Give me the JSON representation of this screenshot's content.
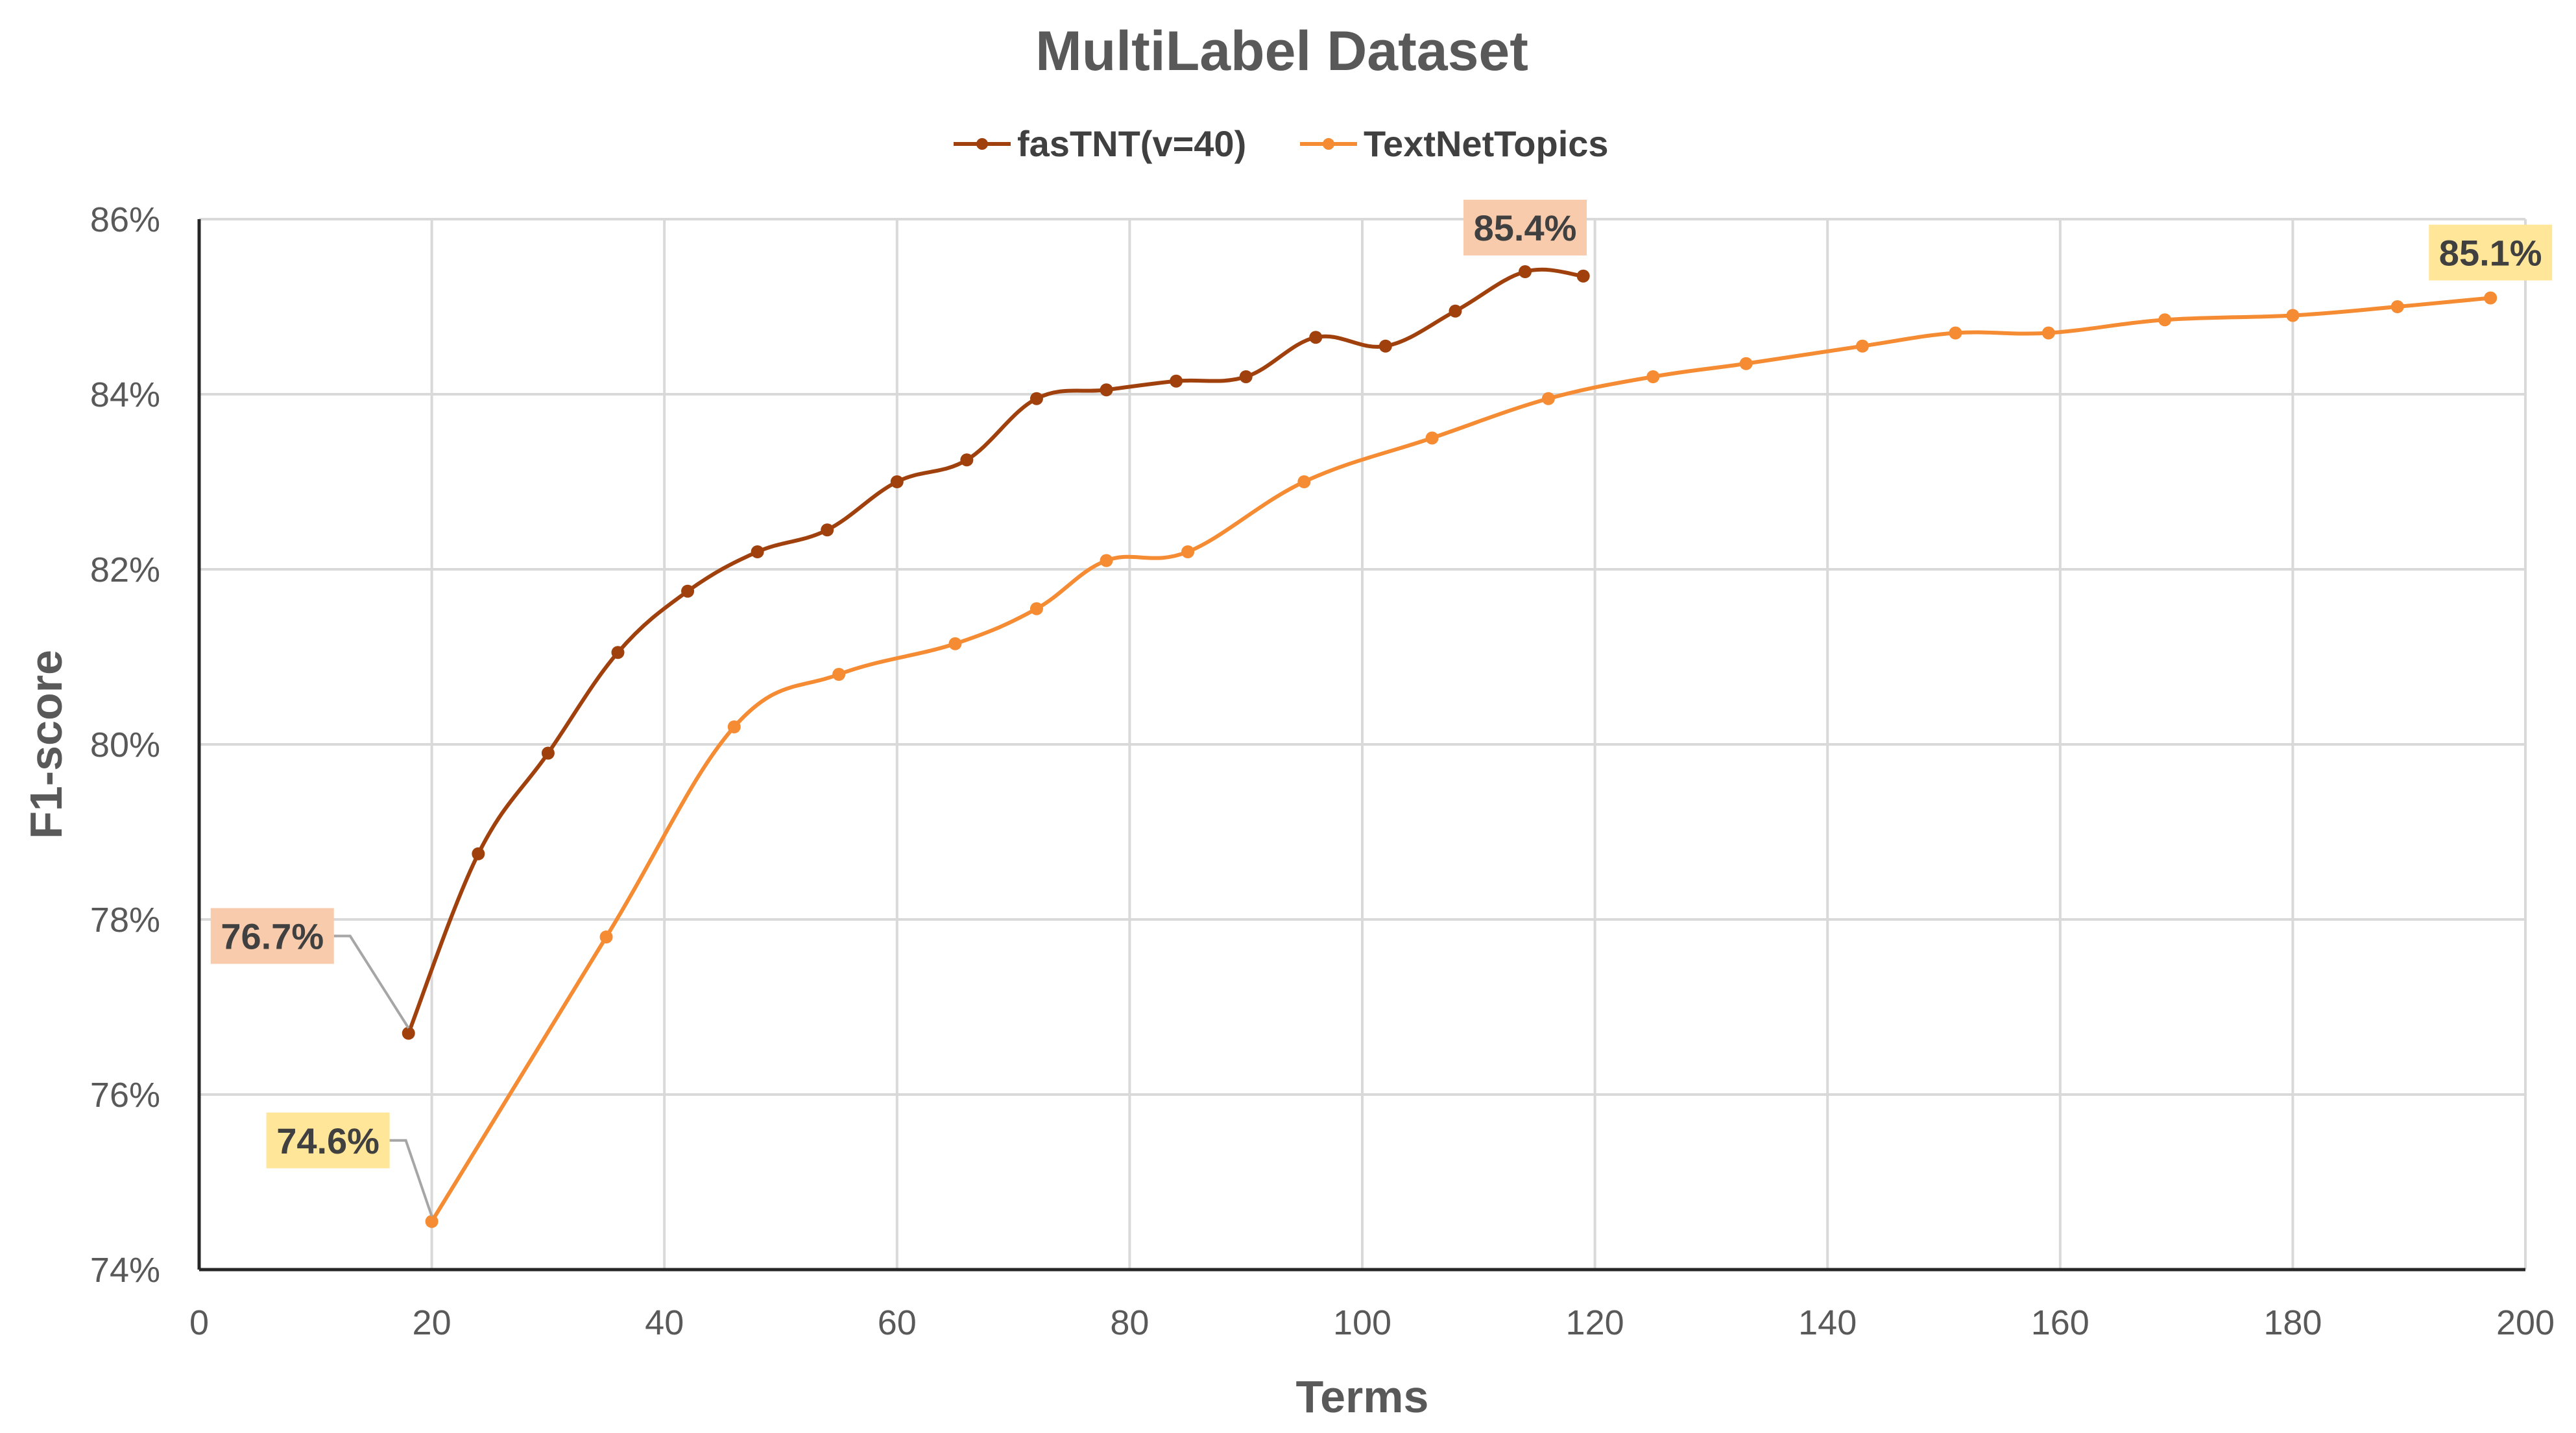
{
  "chart_data": {
    "type": "line",
    "title": "MultiLabel Dataset",
    "xlabel": "Terms",
    "ylabel": "F1-score",
    "xlim": [
      0,
      200
    ],
    "ylim": [
      74,
      86
    ],
    "x_ticks": [
      "0",
      "20",
      "40",
      "60",
      "80",
      "100",
      "120",
      "140",
      "160",
      "180",
      "200"
    ],
    "y_ticks": [
      "74%",
      "76%",
      "78%",
      "80%",
      "82%",
      "84%",
      "86%"
    ],
    "grid": true,
    "legend_position": "top-center",
    "series": [
      {
        "name": "fasTNT(v=40)",
        "color": "#a0410d",
        "x": [
          18,
          24,
          30,
          36,
          42,
          48,
          54,
          60,
          66,
          72,
          78,
          84,
          90,
          96,
          102,
          108,
          114,
          119
        ],
        "y": [
          76.7,
          78.75,
          79.9,
          81.05,
          81.75,
          82.2,
          82.45,
          83.0,
          83.25,
          83.95,
          84.05,
          84.15,
          84.2,
          84.65,
          84.55,
          84.95,
          85.4,
          85.35
        ]
      },
      {
        "name": "TextNetTopics",
        "color": "#f58b32",
        "x": [
          20,
          35,
          46,
          55,
          65,
          72,
          78,
          85,
          95,
          106,
          116,
          125,
          133,
          143,
          151,
          159,
          169,
          180,
          189,
          197
        ],
        "y": [
          74.55,
          77.8,
          80.2,
          80.8,
          81.15,
          81.55,
          82.1,
          82.2,
          83.0,
          83.5,
          83.95,
          84.2,
          84.35,
          84.55,
          84.7,
          84.7,
          84.85,
          84.9,
          85.0,
          85.1
        ]
      }
    ],
    "annotations": [
      {
        "series": 0,
        "point": 0,
        "text": "76.7%",
        "bg": "#f8cbad"
      },
      {
        "series": 0,
        "point": 16,
        "text": "85.4%",
        "bg": "#f8cbad"
      },
      {
        "series": 1,
        "point": 0,
        "text": "74.6%",
        "bg": "#ffe699"
      },
      {
        "series": 1,
        "point": 19,
        "text": "85.1%",
        "bg": "#ffe699"
      }
    ]
  }
}
